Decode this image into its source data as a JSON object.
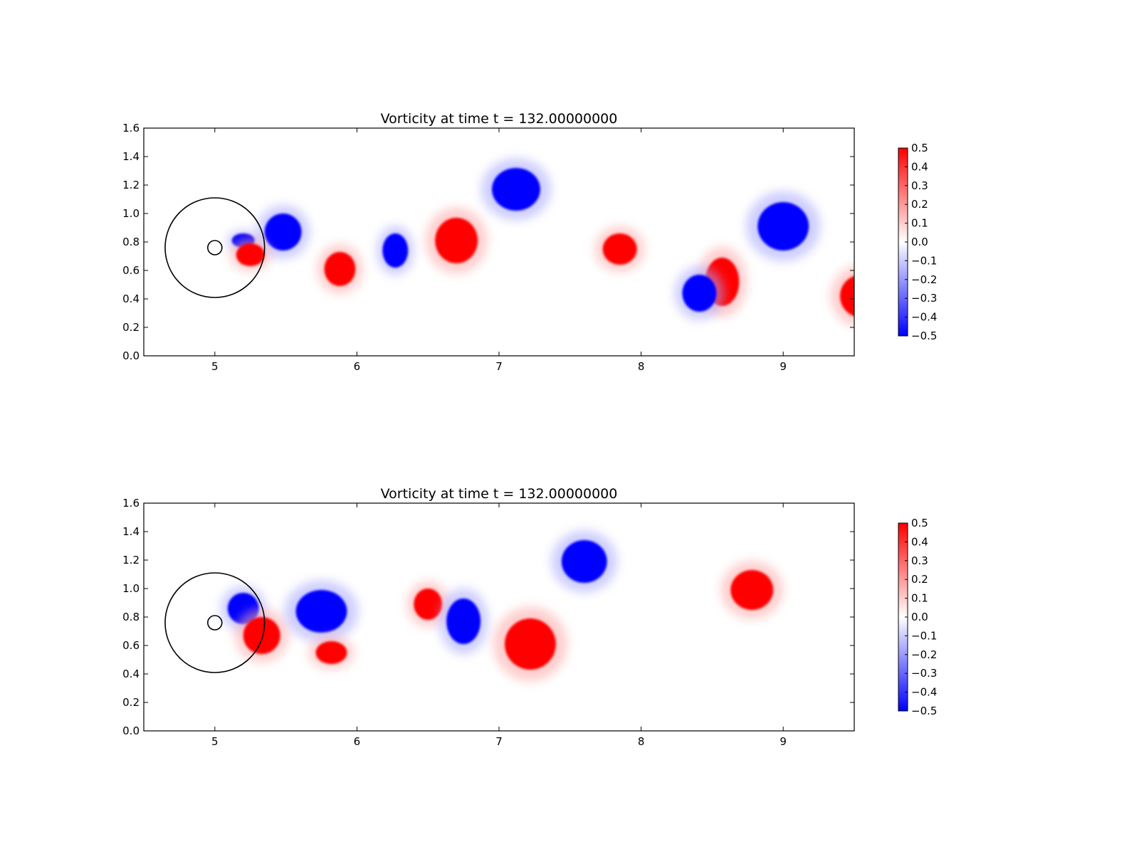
{
  "chart_data": [
    {
      "type": "heatmap",
      "title": "Vorticity at time t =   132.00000000",
      "xlabel": "",
      "ylabel": "",
      "xlim": [
        4.5,
        9.5
      ],
      "ylim": [
        0.0,
        1.6
      ],
      "x_ticks": [
        "5",
        "6",
        "7",
        "8",
        "9"
      ],
      "y_ticks": [
        "0.0",
        "0.2",
        "0.4",
        "0.6",
        "0.8",
        "1.0",
        "1.2",
        "1.4",
        "1.6"
      ],
      "colorbar": {
        "colormap": "bwr",
        "range": [
          -0.5,
          0.5
        ],
        "ticks": [
          "0.5",
          "0.4",
          "0.3",
          "0.2",
          "0.1",
          "0.0",
          "−0.1",
          "−0.2",
          "−0.3",
          "−0.4",
          "−0.5"
        ]
      },
      "grid": false,
      "circles": [
        {
          "cx": 5.0,
          "cy": 0.76,
          "r": 0.35
        },
        {
          "cx": 5.0,
          "cy": 0.76,
          "r": 0.05
        }
      ],
      "vortices": [
        {
          "x": 5.48,
          "y": 0.87,
          "rx": 0.13,
          "ry": 0.13,
          "value": -0.5
        },
        {
          "x": 5.2,
          "y": 0.81,
          "rx": 0.08,
          "ry": 0.05,
          "value": -0.5
        },
        {
          "x": 5.25,
          "y": 0.71,
          "rx": 0.1,
          "ry": 0.08,
          "value": 0.5
        },
        {
          "x": 5.88,
          "y": 0.61,
          "rx": 0.11,
          "ry": 0.12,
          "value": 0.5
        },
        {
          "x": 6.27,
          "y": 0.74,
          "rx": 0.09,
          "ry": 0.12,
          "value": -0.5
        },
        {
          "x": 6.7,
          "y": 0.81,
          "rx": 0.15,
          "ry": 0.16,
          "value": 0.5
        },
        {
          "x": 7.12,
          "y": 1.17,
          "rx": 0.17,
          "ry": 0.15,
          "value": -0.5
        },
        {
          "x": 7.85,
          "y": 0.75,
          "rx": 0.12,
          "ry": 0.11,
          "value": 0.5
        },
        {
          "x": 8.57,
          "y": 0.52,
          "rx": 0.12,
          "ry": 0.17,
          "value": 0.5
        },
        {
          "x": 8.41,
          "y": 0.44,
          "rx": 0.12,
          "ry": 0.13,
          "value": -0.5
        },
        {
          "x": 9.0,
          "y": 0.91,
          "rx": 0.18,
          "ry": 0.17,
          "value": -0.5
        },
        {
          "x": 9.55,
          "y": 0.42,
          "rx": 0.15,
          "ry": 0.15,
          "value": 0.5
        }
      ]
    },
    {
      "type": "heatmap",
      "title": "Vorticity at time t =   132.00000000",
      "xlabel": "",
      "ylabel": "",
      "xlim": [
        4.5,
        9.5
      ],
      "ylim": [
        0.0,
        1.6
      ],
      "x_ticks": [
        "5",
        "6",
        "7",
        "8",
        "9"
      ],
      "y_ticks": [
        "0.0",
        "0.2",
        "0.4",
        "0.6",
        "0.8",
        "1.0",
        "1.2",
        "1.4",
        "1.6"
      ],
      "colorbar": {
        "colormap": "bwr",
        "range": [
          -0.5,
          0.5
        ],
        "ticks": [
          "0.5",
          "0.4",
          "0.3",
          "0.2",
          "0.1",
          "0.0",
          "−0.1",
          "−0.2",
          "−0.3",
          "−0.4",
          "−0.5"
        ]
      },
      "grid": false,
      "circles": [
        {
          "cx": 5.0,
          "cy": 0.76,
          "r": 0.35
        },
        {
          "cx": 5.0,
          "cy": 0.76,
          "r": 0.05
        }
      ],
      "vortices": [
        {
          "x": 5.2,
          "y": 0.86,
          "rx": 0.11,
          "ry": 0.11,
          "value": -0.5
        },
        {
          "x": 5.33,
          "y": 0.67,
          "rx": 0.13,
          "ry": 0.13,
          "value": 0.5
        },
        {
          "x": 5.75,
          "y": 0.84,
          "rx": 0.18,
          "ry": 0.15,
          "value": -0.5
        },
        {
          "x": 5.82,
          "y": 0.55,
          "rx": 0.11,
          "ry": 0.08,
          "value": 0.5
        },
        {
          "x": 6.5,
          "y": 0.89,
          "rx": 0.1,
          "ry": 0.11,
          "value": 0.5
        },
        {
          "x": 6.75,
          "y": 0.77,
          "rx": 0.12,
          "ry": 0.16,
          "value": -0.5
        },
        {
          "x": 7.22,
          "y": 0.61,
          "rx": 0.18,
          "ry": 0.18,
          "value": 0.5
        },
        {
          "x": 7.6,
          "y": 1.19,
          "rx": 0.16,
          "ry": 0.15,
          "value": -0.5
        },
        {
          "x": 8.78,
          "y": 0.99,
          "rx": 0.15,
          "ry": 0.14,
          "value": 0.5
        }
      ]
    }
  ]
}
